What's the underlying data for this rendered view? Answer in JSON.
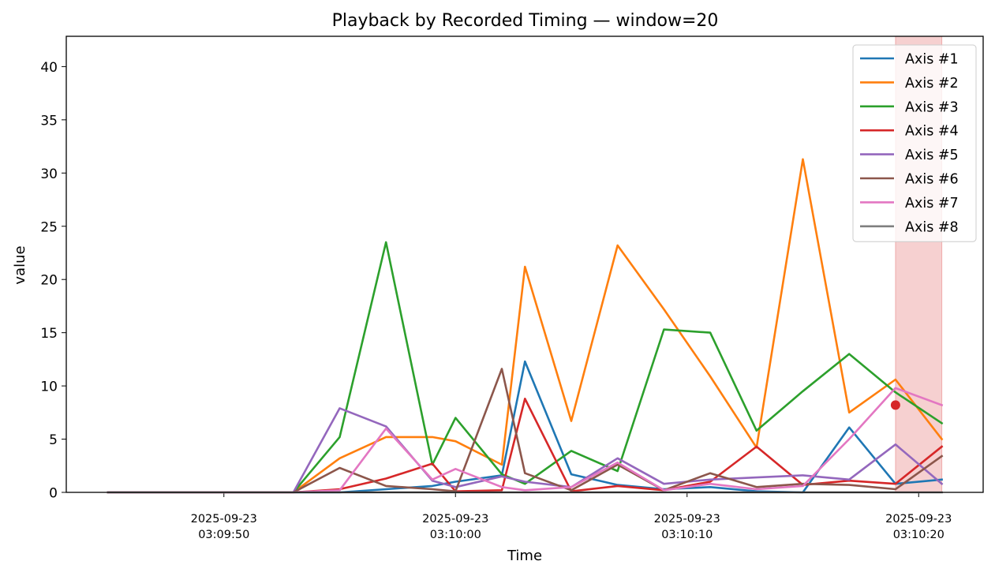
{
  "chart_data": {
    "type": "line",
    "title": "Playback by Recorded Timing — window=20",
    "xlabel": "Time",
    "ylabel": "value",
    "x_axis_type": "time",
    "xlim": [
      "2025-09-23 03:09:45",
      "2025-09-23 03:10:22"
    ],
    "ylim": [
      0,
      42.6
    ],
    "grid": false,
    "legend_position": "top-right",
    "x_ticks": [
      {
        "time": "2025-09-23 03:09:50",
        "line1": "2025-09-23",
        "line2": "03:09:50"
      },
      {
        "time": "2025-09-23 03:10:00",
        "line1": "2025-09-23",
        "line2": "03:10:00"
      },
      {
        "time": "2025-09-23 03:10:10",
        "line1": "2025-09-23",
        "line2": "03:10:10"
      },
      {
        "time": "2025-09-23 03:10:20",
        "line1": "2025-09-23",
        "line2": "03:10:20"
      }
    ],
    "y_ticks": [
      0,
      5,
      10,
      15,
      20,
      25,
      30,
      35,
      40
    ],
    "x": [
      "2025-09-23 03:09:45",
      "2025-09-23 03:09:47",
      "2025-09-23 03:09:49",
      "2025-09-23 03:09:51",
      "2025-09-23 03:09:53",
      "2025-09-23 03:09:55",
      "2025-09-23 03:09:57",
      "2025-09-23 03:09:59",
      "2025-09-23 03:10:00",
      "2025-09-23 03:10:02",
      "2025-09-23 03:10:03",
      "2025-09-23 03:10:05",
      "2025-09-23 03:10:07",
      "2025-09-23 03:10:09",
      "2025-09-23 03:10:11",
      "2025-09-23 03:10:13",
      "2025-09-23 03:10:15",
      "2025-09-23 03:10:17",
      "2025-09-23 03:10:19",
      "2025-09-23 03:10:21"
    ],
    "series": [
      {
        "name": "Axis #1",
        "color": "#1f77b4",
        "values": [
          0,
          0,
          0,
          0,
          0,
          0,
          0.3,
          0.6,
          1.0,
          1.6,
          12.3,
          1.7,
          0.7,
          0.3,
          0.5,
          0.1,
          0,
          6.1,
          0.8,
          1.2
        ]
      },
      {
        "name": "Axis #2",
        "color": "#ff7f0e",
        "values": [
          0,
          0,
          0,
          0,
          0,
          3.2,
          5.2,
          5.2,
          4.8,
          2.6,
          21.2,
          6.7,
          23.2,
          17.2,
          10.9,
          4.2,
          31.3,
          7.5,
          10.6,
          5.0
        ]
      },
      {
        "name": "Axis #3",
        "color": "#2ca02c",
        "values": [
          0,
          0,
          0,
          0,
          0,
          5.2,
          23.5,
          2.6,
          7.0,
          1.7,
          0.8,
          3.9,
          2.0,
          15.3,
          15.0,
          5.8,
          9.5,
          13.0,
          9.4,
          6.5
        ]
      },
      {
        "name": "Axis #4",
        "color": "#d62728",
        "values": [
          0,
          0,
          0,
          0,
          0,
          0.3,
          1.3,
          2.7,
          0.1,
          0.2,
          8.8,
          0.1,
          0.6,
          0.2,
          1.0,
          4.3,
          0.7,
          1.1,
          0.8,
          4.3
        ]
      },
      {
        "name": "Axis #5",
        "color": "#9467bd",
        "values": [
          0,
          0,
          0,
          0,
          0,
          7.9,
          6.2,
          1.1,
          0.5,
          1.5,
          1.0,
          0.5,
          3.2,
          0.8,
          1.2,
          1.4,
          1.6,
          1.2,
          4.5,
          0.8
        ]
      },
      {
        "name": "Axis #6",
        "color": "#8c564b",
        "values": [
          0,
          0,
          0,
          0,
          0,
          2.3,
          0.6,
          0.3,
          0.1,
          11.6,
          1.8,
          0.2,
          2.6,
          0.2,
          1.8,
          0.5,
          0.8,
          0.7,
          0.3,
          3.4
        ]
      },
      {
        "name": "Axis #7",
        "color": "#e377c2",
        "values": [
          0,
          0,
          0,
          0,
          0,
          0.2,
          6.0,
          1.2,
          2.2,
          0.5,
          0.2,
          0.5,
          2.8,
          0.2,
          0.8,
          0.3,
          0.6,
          5.0,
          9.8,
          8.2
        ]
      },
      {
        "name": "Axis #8",
        "color": "#7f7f7f",
        "values": [
          0,
          0,
          0,
          0,
          0,
          0,
          0,
          0,
          0,
          0,
          0,
          0,
          0,
          0,
          0,
          0,
          0,
          0,
          0,
          0
        ]
      }
    ],
    "highlight_window": {
      "start": "2025-09-23 03:10:19",
      "end": "2025-09-23 03:10:21",
      "color": "#d62728"
    },
    "current_marker": {
      "x": "2025-09-23 03:10:19",
      "y": 8.2,
      "color": "#d62728"
    }
  }
}
